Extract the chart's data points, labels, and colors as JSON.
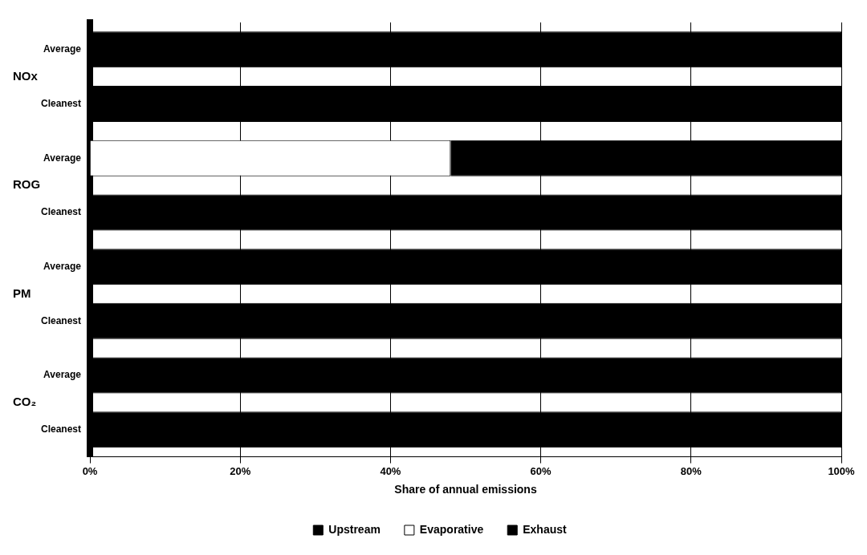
{
  "chart_data": {
    "type": "bar",
    "orientation": "horizontal",
    "stacked": true,
    "categories": [
      "Average",
      "Cleanest",
      "Average",
      "Cleanest",
      "Average",
      "Cleanest",
      "Average",
      "Cleanest"
    ],
    "annotations": [
      "NOx",
      "ROG",
      "PM",
      "CO₂"
    ],
    "series": [
      {
        "name": "Upstream",
        "color": "#000000",
        "values": [
          0,
          0,
          0,
          0,
          0,
          0,
          0,
          0
        ]
      },
      {
        "name": "Evaporative",
        "color": "#ffffff",
        "values": [
          0,
          0,
          48,
          0,
          0,
          0,
          0,
          0
        ]
      },
      {
        "name": "Exhaust",
        "color": "#000000",
        "values": [
          100,
          100,
          52,
          100,
          100,
          100,
          100,
          100
        ]
      }
    ],
    "xlabel": "Share of annual emissions",
    "xlim": [
      0,
      100
    ],
    "xticks": [
      {
        "value": 0,
        "label": "0%"
      },
      {
        "value": 20,
        "label": "20%"
      },
      {
        "value": 40,
        "label": "40%"
      },
      {
        "value": 60,
        "label": "60%"
      },
      {
        "value": 80,
        "label": "80%"
      },
      {
        "value": 100,
        "label": "100%"
      }
    ],
    "grid": "x",
    "legend": "bottom"
  }
}
